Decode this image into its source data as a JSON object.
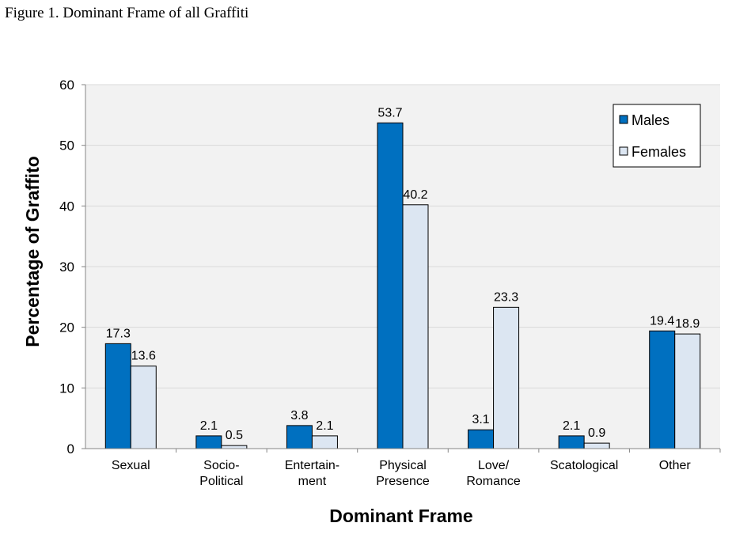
{
  "caption": "Figure 1. Dominant Frame of all Graffiti",
  "chart_data": {
    "type": "bar",
    "title": "",
    "xlabel": "Dominant Frame",
    "ylabel": "Percentage of Graffito",
    "ylim": [
      0,
      60
    ],
    "yticks": [
      0,
      10,
      20,
      30,
      40,
      50,
      60
    ],
    "grid": true,
    "legend_position": "top-right",
    "categories": [
      [
        "Sexual"
      ],
      [
        "Socio-",
        "Political"
      ],
      [
        "Entertain-",
        "ment"
      ],
      [
        "Physical",
        "Presence"
      ],
      [
        "Love/",
        "Romance"
      ],
      [
        "Scatological"
      ],
      [
        "Other"
      ]
    ],
    "series": [
      {
        "name": "Males",
        "color": "#0070C0",
        "values": [
          17.3,
          2.1,
          3.8,
          53.7,
          3.1,
          2.1,
          19.4
        ]
      },
      {
        "name": "Females",
        "color": "#DCE6F2",
        "values": [
          13.6,
          0.5,
          2.1,
          40.2,
          23.3,
          0.9,
          18.9
        ]
      }
    ],
    "data_labels": [
      [
        "17.3",
        "2.1",
        "3.8",
        "53.7",
        "3.1",
        "2.1",
        "19.4"
      ],
      [
        "13.6",
        "0.5",
        "2.1",
        "40.2",
        "23.3",
        "0.9",
        "18.9"
      ]
    ],
    "plot_background": "#F2F2F2"
  }
}
